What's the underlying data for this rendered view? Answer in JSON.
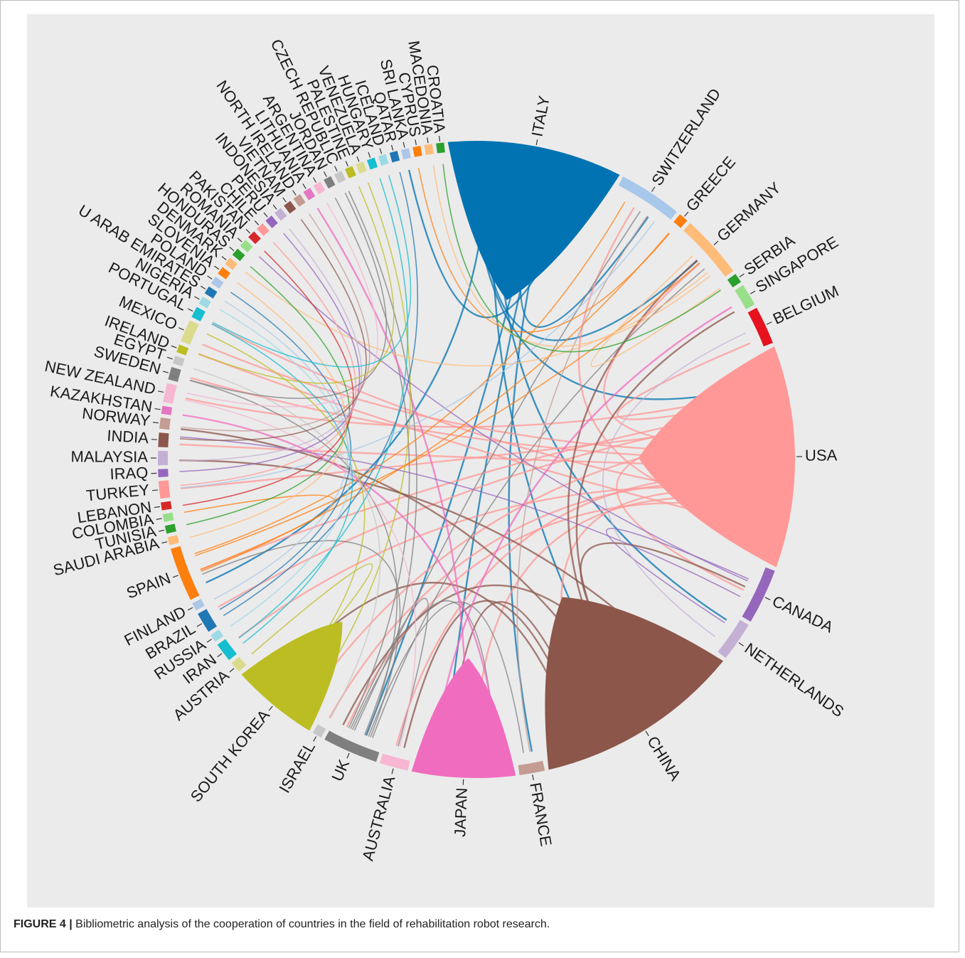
{
  "caption": {
    "figure_label": "FIGURE 4 |",
    "text": "Bibliometric analysis of the cooperation of countries in the field of rehabilitation robot research."
  },
  "chart_data": {
    "type": "chord",
    "segments": [
      {
        "name": "ITALY",
        "color": "#0173b2",
        "weight": 11
      },
      {
        "name": "SWITZERLAND",
        "color": "#a7c8ea",
        "weight": 4
      },
      {
        "name": "GREECE",
        "color": "#ff7f0e",
        "weight": 0.6
      },
      {
        "name": "GERMANY",
        "color": "#ffbb78",
        "weight": 4
      },
      {
        "name": "SERBIA",
        "color": "#2ca02c",
        "weight": 0.6
      },
      {
        "name": "SINGAPORE",
        "color": "#98df8a",
        "weight": 1.4
      },
      {
        "name": "BELGIUM",
        "color": "#e6131f",
        "weight": 2.4
      },
      {
        "name": "USA",
        "color": "#ff9896",
        "weight": 14
      },
      {
        "name": "CANADA",
        "color": "#9467bd",
        "weight": 3.5
      },
      {
        "name": "NETHERLANDS",
        "color": "#c5b0d5",
        "weight": 2.5
      },
      {
        "name": "CHINA",
        "color": "#8c564b",
        "weight": 13
      },
      {
        "name": "FRANCE",
        "color": "#c49c94",
        "weight": 1.6
      },
      {
        "name": "JAPAN",
        "color": "#f06cbf",
        "weight": 6.5
      },
      {
        "name": "AUSTRALIA",
        "color": "#f7b6d2",
        "weight": 1.8
      },
      {
        "name": "UK",
        "color": "#7f7f7f",
        "weight": 3.5
      },
      {
        "name": "ISRAEL",
        "color": "#c7c7c7",
        "weight": 0.6
      },
      {
        "name": "SOUTH KOREA",
        "color": "#bcbd22",
        "weight": 5.5
      },
      {
        "name": "AUSTRIA",
        "color": "#dbdb8d",
        "weight": 0.7
      },
      {
        "name": "IRAN",
        "color": "#17becf",
        "weight": 1.2
      },
      {
        "name": "RUSSIA",
        "color": "#9edae5",
        "weight": 0.5
      },
      {
        "name": "BRAZIL",
        "color": "#1f77b4",
        "weight": 1.3
      },
      {
        "name": "FINLAND",
        "color": "#aec7e8",
        "weight": 0.5
      },
      {
        "name": "SPAIN",
        "color": "#ff7f0e",
        "weight": 3.4
      },
      {
        "name": "SAUDI ARABIA",
        "color": "#ffbb78",
        "weight": 0.5
      },
      {
        "name": "TUNISIA",
        "color": "#2ca02c",
        "weight": 0.5
      },
      {
        "name": "COLOMBIA",
        "color": "#98df8a",
        "weight": 0.5
      },
      {
        "name": "LEBANON",
        "color": "#d62728",
        "weight": 0.5
      },
      {
        "name": "TURKEY",
        "color": "#ff9896",
        "weight": 1.1
      },
      {
        "name": "IRAQ",
        "color": "#9467bd",
        "weight": 0.5
      },
      {
        "name": "MALAYSIA",
        "color": "#c5b0d5",
        "weight": 0.9
      },
      {
        "name": "INDIA",
        "color": "#8c564b",
        "weight": 0.9
      },
      {
        "name": "NORWAY",
        "color": "#c49c94",
        "weight": 0.7
      },
      {
        "name": "KAZAKHSTAN",
        "color": "#e377c2",
        "weight": 0.5
      },
      {
        "name": "NEW ZEALAND",
        "color": "#f7b6d2",
        "weight": 1.2
      },
      {
        "name": "SWEDEN",
        "color": "#7f7f7f",
        "weight": 0.8
      },
      {
        "name": "EGYPT",
        "color": "#c7c7c7",
        "weight": 0.5
      },
      {
        "name": "IRELAND",
        "color": "#bcbd22",
        "weight": 0.5
      },
      {
        "name": "MEXICO",
        "color": "#dbdb8d",
        "weight": 1.4
      },
      {
        "name": "PORTUGAL",
        "color": "#17becf",
        "weight": 0.7
      },
      {
        "name": "NIGERIA",
        "color": "#9edae5",
        "weight": 0.5
      },
      {
        "name": "U ARAB EMIRATES",
        "color": "#1f77b4",
        "weight": 0.5
      },
      {
        "name": "POLAND",
        "color": "#aec7e8",
        "weight": 0.5
      },
      {
        "name": "SLOVENIA",
        "color": "#ff7f0e",
        "weight": 0.5
      },
      {
        "name": "DENMARK",
        "color": "#ffbb78",
        "weight": 0.5
      },
      {
        "name": "HONDURAS",
        "color": "#2ca02c",
        "weight": 0.5
      },
      {
        "name": "ROMANIA",
        "color": "#98df8a",
        "weight": 0.5
      },
      {
        "name": "PAKISTAN",
        "color": "#d62728",
        "weight": 0.5
      },
      {
        "name": "CHILE",
        "color": "#ff9896",
        "weight": 0.5
      },
      {
        "name": "PERU",
        "color": "#9467bd",
        "weight": 0.5
      },
      {
        "name": "INDONESIA",
        "color": "#c5b0d5",
        "weight": 0.5
      },
      {
        "name": "VIETNAM",
        "color": "#8c564b",
        "weight": 0.5
      },
      {
        "name": "NORTH IRELAND",
        "color": "#c49c94",
        "weight": 0.5
      },
      {
        "name": "LITHUANIA",
        "color": "#e377c2",
        "weight": 0.5
      },
      {
        "name": "ARGENTINA",
        "color": "#f7b6d2",
        "weight": 0.5
      },
      {
        "name": "JORDAN",
        "color": "#7f7f7f",
        "weight": 0.5
      },
      {
        "name": "CZECH REPUBLIC",
        "color": "#c7c7c7",
        "weight": 0.5
      },
      {
        "name": "PALESTINE",
        "color": "#bcbd22",
        "weight": 0.5
      },
      {
        "name": "VENEZUELA",
        "color": "#dbdb8d",
        "weight": 0.5
      },
      {
        "name": "HUNGARY",
        "color": "#17becf",
        "weight": 0.5
      },
      {
        "name": "ICELAND",
        "color": "#9edae5",
        "weight": 0.5
      },
      {
        "name": "QATAR",
        "color": "#1f77b4",
        "weight": 0.5
      },
      {
        "name": "SRI LANKA",
        "color": "#aec7e8",
        "weight": 0.5
      },
      {
        "name": "CYPRUS",
        "color": "#ff7f0e",
        "weight": 0.5
      },
      {
        "name": "MACEDONIA",
        "color": "#ffbb78",
        "weight": 0.5
      },
      {
        "name": "CROATIA",
        "color": "#2ca02c",
        "weight": 0.5
      }
    ],
    "links": [
      [
        "ITALY",
        "USA"
      ],
      [
        "ITALY",
        "SWITZERLAND"
      ],
      [
        "ITALY",
        "GERMANY"
      ],
      [
        "ITALY",
        "UK"
      ],
      [
        "ITALY",
        "SPAIN"
      ],
      [
        "ITALY",
        "JAPAN"
      ],
      [
        "ITALY",
        "CHINA"
      ],
      [
        "ITALY",
        "FRANCE"
      ],
      [
        "ITALY",
        "NETHERLANDS"
      ],
      [
        "USA",
        "CHINA"
      ],
      [
        "USA",
        "CANADA"
      ],
      [
        "USA",
        "JAPAN"
      ],
      [
        "USA",
        "SOUTH KOREA"
      ],
      [
        "USA",
        "UK"
      ],
      [
        "USA",
        "GERMANY"
      ],
      [
        "USA",
        "SWITZERLAND"
      ],
      [
        "USA",
        "MEXICO"
      ],
      [
        "USA",
        "IRELAND"
      ],
      [
        "USA",
        "SWEDEN"
      ],
      [
        "USA",
        "NEW ZEALAND"
      ],
      [
        "USA",
        "INDIA"
      ],
      [
        "USA",
        "BELGIUM"
      ],
      [
        "USA",
        "AUSTRALIA"
      ],
      [
        "USA",
        "SPAIN"
      ],
      [
        "USA",
        "ISRAEL"
      ],
      [
        "USA",
        "BRAZIL"
      ],
      [
        "USA",
        "IRAN"
      ],
      [
        "USA",
        "TURKEY"
      ],
      [
        "USA",
        "PORTUGAL"
      ],
      [
        "CHINA",
        "UK"
      ],
      [
        "CHINA",
        "JAPAN"
      ],
      [
        "CHINA",
        "CANADA"
      ],
      [
        "CHINA",
        "AUSTRALIA"
      ],
      [
        "CHINA",
        "SINGAPORE"
      ],
      [
        "CHINA",
        "SOUTH KOREA"
      ],
      [
        "CHINA",
        "GERMANY"
      ],
      [
        "CHINA",
        "MALAYSIA"
      ],
      [
        "CHINA",
        "NORWAY"
      ],
      [
        "UK",
        "GERMANY"
      ],
      [
        "UK",
        "SWITZERLAND"
      ],
      [
        "UK",
        "SPAIN"
      ],
      [
        "UK",
        "JAPAN"
      ],
      [
        "UK",
        "FRANCE"
      ],
      [
        "UK",
        "AUSTRALIA"
      ],
      [
        "UK",
        "SWEDEN"
      ],
      [
        "UK",
        "JORDAN"
      ],
      [
        "UK",
        "CZECH REPUBLIC"
      ],
      [
        "SPAIN",
        "GERMANY"
      ],
      [
        "SPAIN",
        "GREECE"
      ],
      [
        "SPAIN",
        "SWITZERLAND"
      ],
      [
        "SPAIN",
        "COLOMBIA"
      ],
      [
        "JAPAN",
        "SINGAPORE"
      ],
      [
        "JAPAN",
        "LITHUANIA"
      ],
      [
        "JAPAN",
        "KAZAKHSTAN"
      ],
      [
        "SOUTH KOREA",
        "MEXICO"
      ],
      [
        "SOUTH KOREA",
        "VENEZUELA"
      ],
      [
        "SOUTH KOREA",
        "AUSTRIA"
      ],
      [
        "IRAN",
        "PORTUGAL"
      ],
      [
        "IRAN",
        "HUNGARY"
      ],
      [
        "BRAZIL",
        "QATAR"
      ],
      [
        "BRAZIL",
        "POLAND"
      ],
      [
        "CANADA",
        "NETHERLANDS"
      ],
      [
        "CANADA",
        "INDIA"
      ],
      [
        "CANADA",
        "ROMANIA"
      ],
      [
        "NETHERLANDS",
        "BELGIUM"
      ],
      [
        "GERMANY",
        "SERBIA"
      ],
      [
        "GERMANY",
        "DENMARK"
      ],
      [
        "FRANCE",
        "SWITZERLAND"
      ],
      [
        "SWITZERLAND",
        "TURKEY"
      ],
      [
        "AUSTRALIA",
        "NEW ZEALAND"
      ],
      [
        "ISRAEL",
        "EGYPT"
      ],
      [
        "RUSSIA",
        "NIGERIA"
      ],
      [
        "FINLAND",
        "U ARAB EMIRATES"
      ],
      [
        "TUNISIA",
        "HONDURAS"
      ],
      [
        "LEBANON",
        "PAKISTAN"
      ],
      [
        "IRAQ",
        "PERU"
      ],
      [
        "SAUDI ARABIA",
        "SLOVENIA"
      ],
      [
        "TURKEY",
        "CHILE"
      ],
      [
        "MALAYSIA",
        "INDONESIA"
      ],
      [
        "INDIA",
        "VIETNAM"
      ],
      [
        "NORWAY",
        "NORTH IRELAND"
      ],
      [
        "NEW ZEALAND",
        "ARGENTINA"
      ],
      [
        "SWEDEN",
        "CZECH REPUBLIC"
      ],
      [
        "IRELAND",
        "PALESTINE"
      ],
      [
        "PORTUGAL",
        "ICELAND"
      ],
      [
        "ITALY",
        "SRI LANKA"
      ],
      [
        "GREECE",
        "CYPRUS"
      ],
      [
        "GERMANY",
        "MACEDONIA"
      ],
      [
        "SERBIA",
        "CROATIA"
      ]
    ]
  }
}
